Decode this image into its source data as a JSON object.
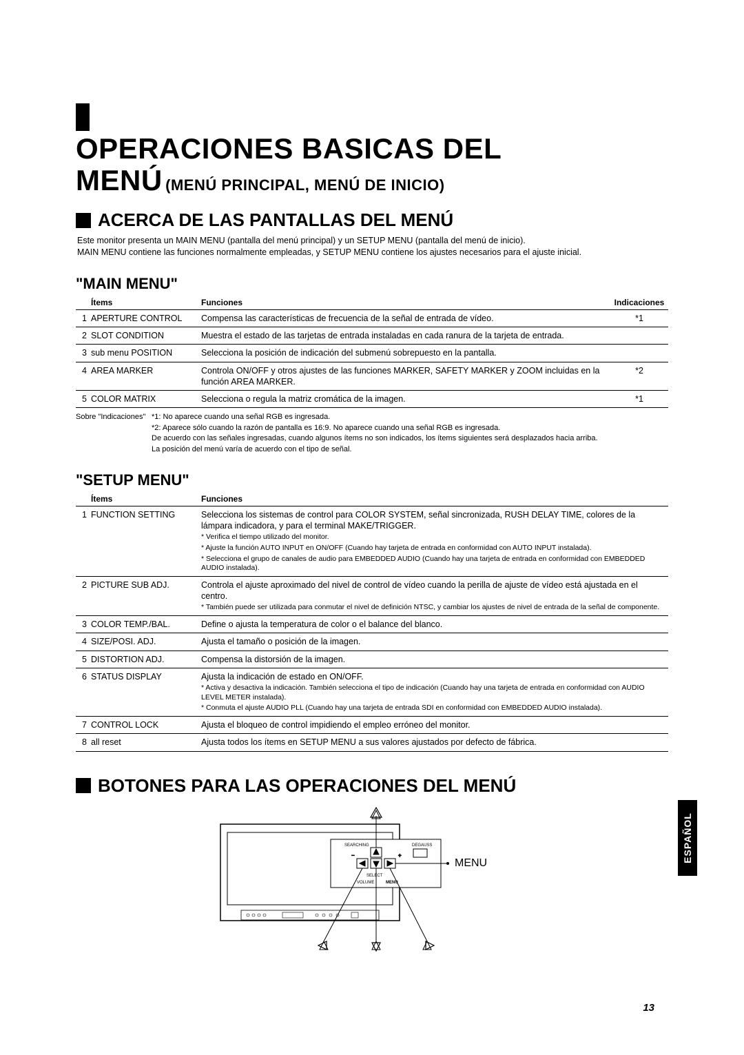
{
  "title_line1": "OPERACIONES BASICAS DEL",
  "title_line2": "MENÚ",
  "title_suffix": "(MENÚ PRINCIPAL, MENÚ DE INICIO)",
  "section1_heading": "ACERCA DE LAS PANTALLAS DEL MENÚ",
  "intro_p1": "Este monitor presenta un MAIN MENU (pantalla del menú principal) y un SETUP MENU (pantalla del menú de inicio).",
  "intro_p2": "MAIN MENU contiene las funciones normalmente empleadas, y SETUP MENU contiene los ajustes necesarios para el ajuste inicial.",
  "main_menu_heading": "\"MAIN MENU\"",
  "col_items": "Ítems",
  "col_func": "Funciones",
  "col_ind": "Indicaciones",
  "main_rows": [
    {
      "n": "1",
      "item": "APERTURE CONTROL",
      "func": "Compensa las características de frecuencia de la señal de entrada de vídeo.",
      "ind": "*1"
    },
    {
      "n": "2",
      "item": "SLOT CONDITION",
      "func": "Muestra el estado de las tarjetas de entrada instaladas en cada ranura de la tarjeta de entrada.",
      "ind": ""
    },
    {
      "n": "3",
      "item": "sub menu POSITION",
      "func": "Selecciona la posición de indicación del submenú sobrepuesto en la pantalla.",
      "ind": ""
    },
    {
      "n": "4",
      "item": "AREA MARKER",
      "func": "Controla ON/OFF y otros ajustes de las funciones MARKER, SAFETY MARKER y ZOOM incluidas en la función AREA MARKER.",
      "ind": "*2"
    },
    {
      "n": "5",
      "item": "COLOR MATRIX",
      "func": "Selecciona o regula la matriz cromática de la imagen.",
      "ind": "*1"
    }
  ],
  "about_ind_label": "Sobre \"Indicaciones\"",
  "note_star1": "*1: No aparece cuando una señal RGB es ingresada.",
  "note_star2": "*2: Aparece sólo cuando la razón de pantalla es 16:9. No aparece cuando una señal RGB es ingresada.",
  "note_extra1": "De acuerdo con las señales ingresadas, cuando algunos ítems no son indicados, los ítems siguientes será desplazados hacia arriba.",
  "note_extra2": "La posición del menú varía de acuerdo con el tipo de señal.",
  "setup_menu_heading": "\"SETUP MENU\"",
  "setup_rows": [
    {
      "n": "1",
      "item": "FUNCTION SETTING",
      "func": "Selecciona los sistemas de control para COLOR SYSTEM, señal sincronizada, RUSH DELAY TIME, colores de la lámpara indicadora, y para el terminal MAKE/TRIGGER.",
      "notes": [
        "* Verifica el tiempo utilizado del monitor.",
        "* Ajuste la función AUTO INPUT en ON/OFF (Cuando hay tarjeta de entrada en conformidad con AUTO INPUT instalada).",
        "* Selecciona el grupo de canales de audio para EMBEDDED AUDIO (Cuando hay una tarjeta de entrada en conformidad con EMBEDDED AUDIO instalada)."
      ]
    },
    {
      "n": "2",
      "item": "PICTURE SUB ADJ.",
      "func": "Controla el ajuste aproximado del nivel de control de vídeo cuando la perilla de ajuste de vídeo está ajustada en el centro.",
      "notes": [
        "* También puede ser utilizada para conmutar el nivel de definición NTSC, y cambiar los ajustes de nivel de entrada de la señal de componente."
      ]
    },
    {
      "n": "3",
      "item": "COLOR TEMP./BAL.",
      "func": "Define o ajusta la temperatura de color o el balance del blanco.",
      "notes": []
    },
    {
      "n": "4",
      "item": "SIZE/POSI. ADJ.",
      "func": "Ajusta el tamaño o posición de la imagen.",
      "notes": []
    },
    {
      "n": "5",
      "item": "DISTORTION ADJ.",
      "func": "Compensa la distorsión de la imagen.",
      "notes": []
    },
    {
      "n": "6",
      "item": "STATUS DISPLAY",
      "func": "Ajusta la indicación de estado en ON/OFF.",
      "notes": [
        "* Activa y desactiva la indicación. También selecciona el tipo de indicación (Cuando hay una tarjeta de entrada en conformidad con AUDIO LEVEL METER instalada).",
        "* Conmuta el ajuste AUDIO PLL (Cuando hay una tarjeta de entrada SDI en conformidad con EMBEDDED AUDIO instalada)."
      ]
    },
    {
      "n": "7",
      "item": "CONTROL LOCK",
      "func": "Ajusta el bloqueo de control impidiendo el empleo erróneo del monitor.",
      "notes": []
    },
    {
      "n": "8",
      "item": "all reset",
      "func": "Ajusta todos los ítems en SETUP MENU a sus valores ajustados por defecto de fábrica.",
      "notes": []
    }
  ],
  "section2_heading": "BOTONES PARA LAS OPERACIONES DEL MENÚ",
  "diagram_menu_label": "MENU",
  "page_number": "13",
  "lang_tab": "ESPAÑOL",
  "diagram_small": {
    "searching": "SEARCHING",
    "degauss": "DEGAUSS",
    "menu": "MENU",
    "volume": "VOLUME",
    "select": "SELECT"
  }
}
